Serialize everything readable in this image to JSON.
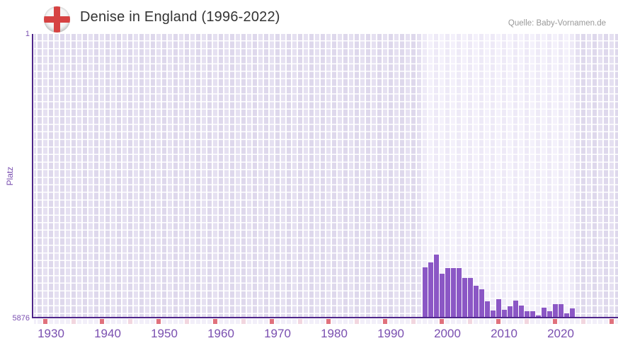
{
  "header": {
    "title": "Denise in England (1996-2022)",
    "source": "Quelle: Baby-Vornamen.de",
    "flag": "england-flag"
  },
  "chart_data": {
    "type": "bar",
    "title": "Denise in England (1996-2022)",
    "ylabel": "Platz",
    "legend": "none",
    "grid": true,
    "y_axis": {
      "inverted": true,
      "min": 1,
      "max": 5876,
      "top_label": "1",
      "bottom_label": "5876"
    },
    "x_axis": {
      "min_year": 1925,
      "max_year": 2030,
      "decade_ticks": [
        1930,
        1940,
        1950,
        1960,
        1970,
        1980,
        1990,
        2000,
        2010,
        2020
      ]
    },
    "data_band": {
      "start_year": 1996,
      "end_year": 2022
    },
    "series": [
      {
        "name": "Platz",
        "years": [
          1996,
          1997,
          1998,
          1999,
          2000,
          2001,
          2002,
          2003,
          2004,
          2005,
          2006,
          2007,
          2008,
          2009,
          2010,
          2011,
          2012,
          2013,
          2014,
          2015,
          2016,
          2017,
          2018,
          2019,
          2020,
          2021,
          2022
        ],
        "values": [
          4830,
          4730,
          4570,
          4970,
          4850,
          4850,
          4850,
          5050,
          5050,
          5220,
          5290,
          5540,
          5730,
          5490,
          5710,
          5640,
          5520,
          5630,
          5740,
          5750,
          5830,
          5670,
          5740,
          5600,
          5600,
          5790,
          5690
        ]
      }
    ],
    "axis_strip_markers": {
      "dark_years": [
        1929,
        1939,
        1949,
        1959,
        1969,
        1979,
        1989,
        1999,
        2009,
        2019,
        2029
      ],
      "light_years": [
        1934,
        1944,
        1954,
        1964,
        1974,
        1984,
        1994,
        2004,
        2014,
        2024
      ]
    },
    "colors": {
      "bar": "#8b57c5",
      "axis_line": "#4f268a",
      "tick_label": "#7a4fb0",
      "title": "#333333",
      "source": "#999999",
      "grid_dark_a": "#ded8ec",
      "grid_dark_b": "#e5e0f1",
      "grid_light_a": "#eeeaf7",
      "grid_light_b": "#f4f1fb",
      "strip_default": "#f2eff9",
      "strip_dark": "#e0717c",
      "strip_light": "#f2d6df",
      "flag_red": "#d64242"
    }
  }
}
